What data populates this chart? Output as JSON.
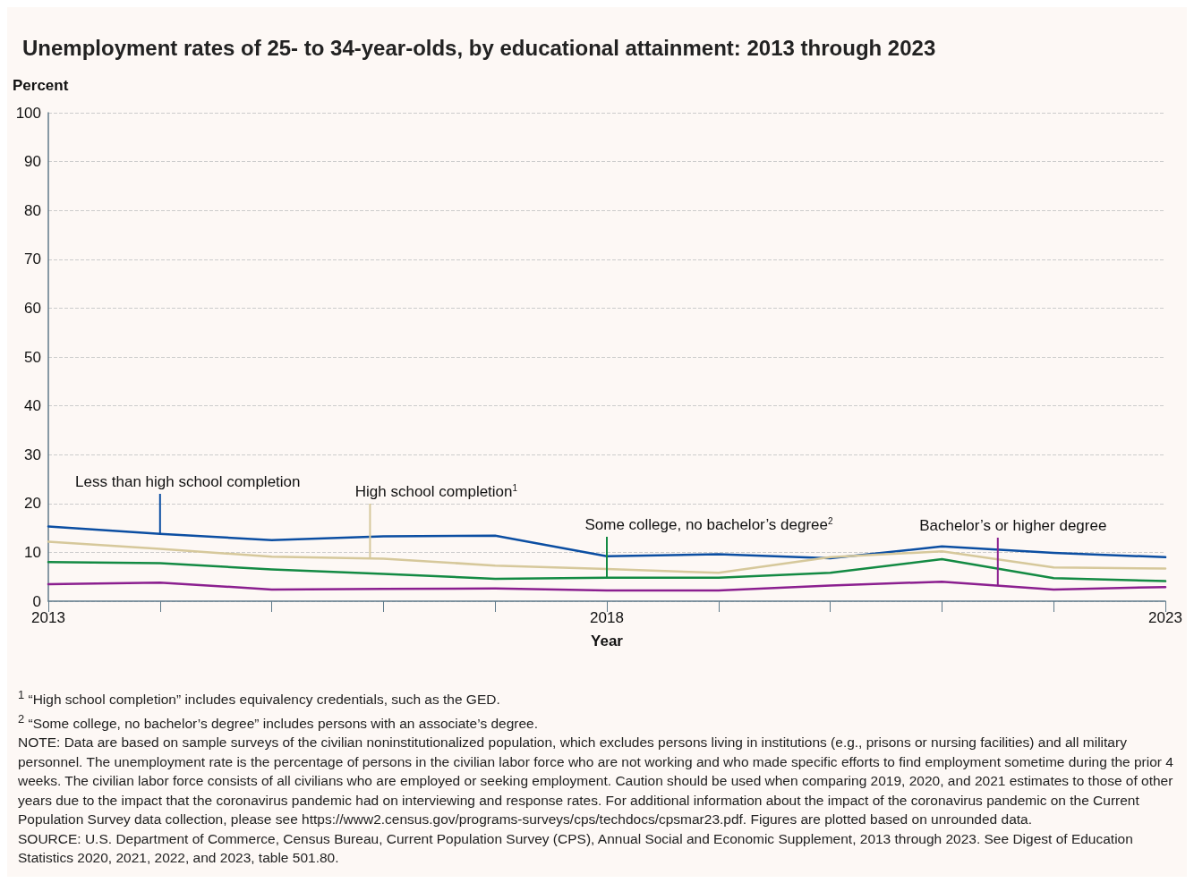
{
  "chart_data": {
    "type": "line",
    "title": "Unemployment rates of 25- to 34-year-olds, by educational attainment: 2013 through 2023",
    "xlabel": "Year",
    "ylabel": "Percent",
    "x": [
      2013,
      2014,
      2015,
      2016,
      2017,
      2018,
      2019,
      2020,
      2021,
      2022,
      2023
    ],
    "xlim": [
      2013,
      2023
    ],
    "xticks": [
      2013,
      {
        "value": 2014,
        "label": null
      },
      {
        "value": 2015,
        "label": null
      },
      {
        "value": 2016,
        "label": null
      },
      {
        "value": 2017,
        "label": null
      },
      2018,
      {
        "value": 2019,
        "label": null
      },
      {
        "value": 2020,
        "label": null
      },
      {
        "value": 2021,
        "label": null
      },
      {
        "value": 2022,
        "label": null
      },
      2023
    ],
    "ylim": [
      0,
      100
    ],
    "yticks": [
      0,
      10,
      20,
      30,
      40,
      50,
      60,
      70,
      80,
      90,
      100
    ],
    "grid": "y",
    "legend": false,
    "marker": "none",
    "line_style": "solid",
    "series": [
      {
        "name": "Less than high school completion",
        "color": "#0b4ea2",
        "values": [
          15.3,
          13.8,
          12.5,
          13.3,
          13.4,
          9.2,
          9.6,
          8.8,
          11.2,
          9.9,
          9.0
        ]
      },
      {
        "name": "High school completion$^{1}$",
        "color": "#d6c89b",
        "values": [
          12.2,
          10.7,
          9.1,
          8.7,
          7.3,
          6.6,
          5.8,
          9.0,
          10.2,
          6.9,
          6.7
        ]
      },
      {
        "name": "Some college, no bachelor’s degree$^{2}$",
        "color": "#138a43",
        "values": [
          8.0,
          7.8,
          6.5,
          5.6,
          4.6,
          4.8,
          4.8,
          5.8,
          8.6,
          4.7,
          4.1
        ]
      },
      {
        "name": "Bachelor’s or higher degree",
        "color": "#8b1f8f",
        "values": [
          3.5,
          3.8,
          2.4,
          2.5,
          2.6,
          2.2,
          2.2,
          3.2,
          4.0,
          2.4,
          2.9
        ]
      }
    ],
    "annotations": [
      "$^{1}$ “High school completion” includes equivalency credentials, such as the GED.",
      "$^{2}$ “Some college, no bachelor’s degree” includes persons with an associate’s degree.",
      "NOTE: Data are based on sample surveys of the civilian noninstitutionalized population, which excludes persons living in institutions (e.g., prisons or nursing facilities) and all military personnel. The unemployment rate is the percentage of persons in the civilian labor force who are not working and who made specific efforts to find employment sometime during the prior 4 weeks. The civilian labor force consists of all civilians who are employed or seeking employment. Caution should be used when comparing 2019, 2020, and 2021 estimates to those of other years due to the impact that the coronavirus pandemic had on interviewing and response rates. For additional information about the impact of the coronavirus pandemic on the Current Population Survey data collection, please see https://www2.census.gov/programs-surveys/cps/techdocs/cpsmar23.pdf. Figures are plotted based on unrounded data.",
      "SOURCE: U.S. Department of Commerce, Census Bureau, Current Population Survey (CPS), Annual Social and Economic Supplement, 2013 through 2023. See Digest of Education Statistics 2020, 2021, 2022, and 2023, table 501.80."
    ]
  }
}
